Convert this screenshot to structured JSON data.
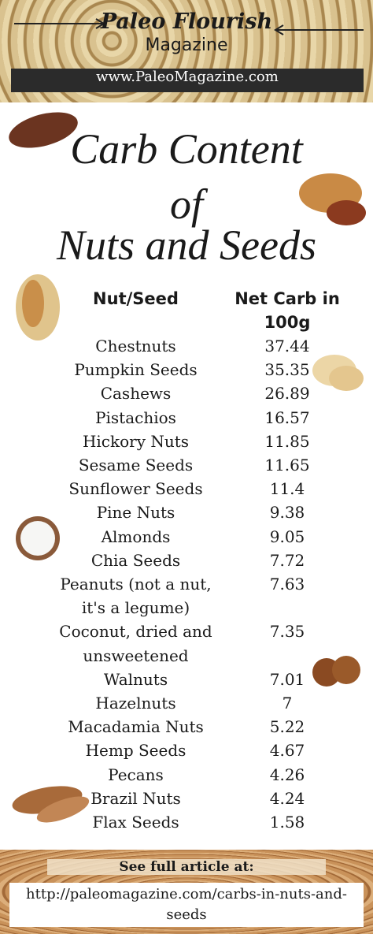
{
  "header": {
    "brand": "Paleo Flourish",
    "subbrand": "Magazine",
    "url": "www.PaleoMagazine.com"
  },
  "title": {
    "line1": "Carb Content",
    "line2": "of",
    "line3": "Nuts and Seeds"
  },
  "table": {
    "columns": [
      "Nut/Seed",
      "Net Carb in 100g"
    ],
    "rows": [
      [
        "Chestnuts",
        "37.44"
      ],
      [
        "Pumpkin Seeds",
        "35.35"
      ],
      [
        "Cashews",
        "26.89"
      ],
      [
        "Pistachios",
        "16.57"
      ],
      [
        "Hickory Nuts",
        "11.85"
      ],
      [
        "Sesame Seeds",
        "11.65"
      ],
      [
        "Sunflower Seeds",
        "11.4"
      ],
      [
        "Pine Nuts",
        "9.38"
      ],
      [
        "Almonds",
        "9.05"
      ],
      [
        "Chia Seeds",
        "7.72"
      ],
      [
        "Peanuts (not a nut, it's a legume)",
        "7.63"
      ],
      [
        "Coconut, dried and unsweetened",
        "7.35"
      ],
      [
        "Walnuts",
        "7.01"
      ],
      [
        "Hazelnuts",
        "7"
      ],
      [
        "Macadamia Nuts",
        "5.22"
      ],
      [
        "Hemp Seeds",
        "4.67"
      ],
      [
        "Pecans",
        "4.26"
      ],
      [
        "Brazil Nuts",
        "4.24"
      ],
      [
        "Flax Seeds",
        "1.58"
      ]
    ]
  },
  "footer": {
    "label": "See full article at:",
    "url": "http://paleomagazine.com/carbs-in-nuts-and-seeds"
  }
}
